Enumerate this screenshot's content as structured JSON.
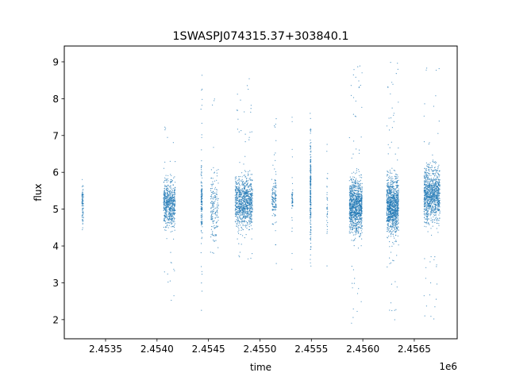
{
  "chart_data": {
    "type": "scatter",
    "title": "1SWASPJ074315.37+303840.1",
    "xlabel": "time",
    "ylabel": "flux",
    "x_offset_label": "1e6",
    "xlim": [
      2453099,
      2456917
    ],
    "ylim": [
      1.48,
      9.43
    ],
    "xticks": [
      2453500,
      2454000,
      2454500,
      2455000,
      2455500,
      2456000,
      2456500
    ],
    "xtick_labels": [
      "2.4535",
      "2.4540",
      "2.4545",
      "2.4550",
      "2.4555",
      "2.4560",
      "2.4565"
    ],
    "yticks": [
      2,
      3,
      4,
      5,
      6,
      7,
      8,
      9
    ],
    "ytick_labels": [
      "2",
      "3",
      "4",
      "5",
      "6",
      "7",
      "8",
      "9"
    ],
    "grid": false,
    "color": "#1f77b4",
    "series_clusters": [
      {
        "t0": 2453270,
        "t1": 2453285,
        "n": 80,
        "ylo": 4.0,
        "yhi": 6.2,
        "outliers": 2,
        "olo": 3.9,
        "ohi": 7.5
      },
      {
        "t0": 2454062,
        "t1": 2454177,
        "n": 600,
        "ylo": 4.1,
        "yhi": 6.2,
        "outliers": 30,
        "olo": 2.5,
        "ohi": 7.6
      },
      {
        "t0": 2454427,
        "t1": 2454440,
        "n": 120,
        "ylo": 3.8,
        "yhi": 6.6,
        "outliers": 25,
        "olo": 1.9,
        "ohi": 8.8
      },
      {
        "t0": 2454520,
        "t1": 2454597,
        "n": 160,
        "ylo": 3.5,
        "yhi": 6.5,
        "outliers": 20,
        "olo": 3.0,
        "ohi": 8.0
      },
      {
        "t0": 2454759,
        "t1": 2454929,
        "n": 900,
        "ylo": 4.1,
        "yhi": 6.3,
        "outliers": 40,
        "olo": 3.3,
        "ohi": 8.6
      },
      {
        "t0": 2455114,
        "t1": 2455160,
        "n": 120,
        "ylo": 4.3,
        "yhi": 6.3,
        "outliers": 20,
        "olo": 3.4,
        "ohi": 7.6
      },
      {
        "t0": 2455310,
        "t1": 2455320,
        "n": 40,
        "ylo": 4.5,
        "yhi": 6.0,
        "outliers": 12,
        "olo": 2.9,
        "ohi": 7.6
      },
      {
        "t0": 2455488,
        "t1": 2455496,
        "n": 220,
        "ylo": 3.2,
        "yhi": 7.8,
        "outliers": 10,
        "olo": 3.0,
        "ohi": 7.9
      },
      {
        "t0": 2455650,
        "t1": 2455658,
        "n": 30,
        "ylo": 3.8,
        "yhi": 6.6,
        "outliers": 5,
        "olo": 3.4,
        "ohi": 7.1
      },
      {
        "t0": 2455870,
        "t1": 2455993,
        "n": 1000,
        "ylo": 3.9,
        "yhi": 6.3,
        "outliers": 60,
        "olo": 1.9,
        "ohi": 9.0
      },
      {
        "t0": 2456232,
        "t1": 2456348,
        "n": 1000,
        "ylo": 3.9,
        "yhi": 6.3,
        "outliers": 60,
        "olo": 1.9,
        "ohi": 9.0
      },
      {
        "t0": 2456595,
        "t1": 2456749,
        "n": 1000,
        "ylo": 4.2,
        "yhi": 6.6,
        "outliers": 50,
        "olo": 2.0,
        "ohi": 9.0
      }
    ]
  }
}
